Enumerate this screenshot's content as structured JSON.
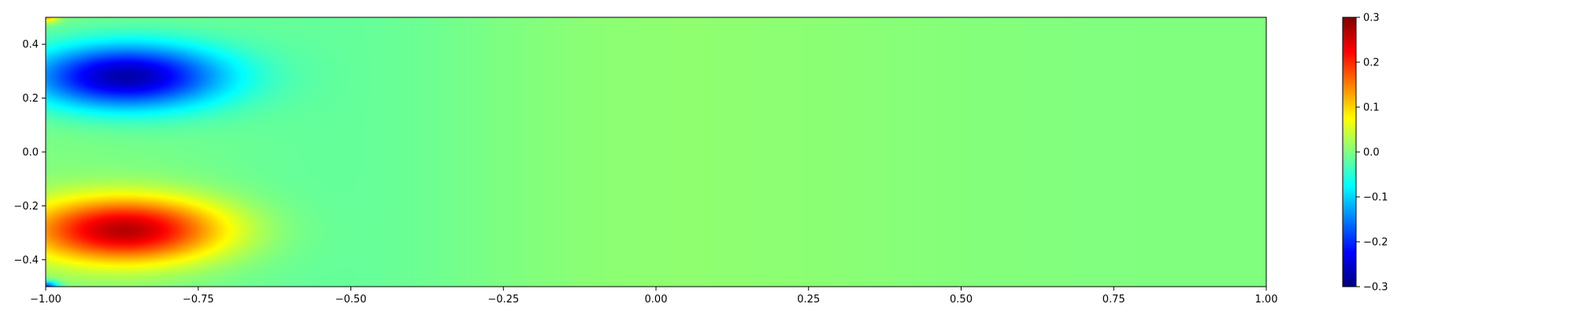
{
  "chart_data": {
    "type": "heatmap",
    "title": "",
    "xlabel": "",
    "ylabel": "",
    "xlim": [
      -1.0,
      1.0
    ],
    "ylim": [
      -0.5,
      0.5
    ],
    "x_ticks": [
      "−1.00",
      "−0.75",
      "−0.50",
      "−0.25",
      "0.00",
      "0.25",
      "0.50",
      "0.75",
      "1.00"
    ],
    "x_tick_values": [
      -1.0,
      -0.75,
      -0.5,
      -0.25,
      0.0,
      0.25,
      0.5,
      0.75,
      1.0
    ],
    "y_ticks": [
      "−0.4",
      "−0.2",
      "0.0",
      "0.2",
      "0.4"
    ],
    "y_tick_values": [
      -0.4,
      -0.2,
      0.0,
      0.2,
      0.4
    ],
    "colormap": "jet",
    "colorbar": {
      "range": [
        -0.3,
        0.3
      ],
      "ticks": [
        "−0.3",
        "−0.2",
        "−0.1",
        "0.0",
        "0.1",
        "0.2",
        "0.3"
      ],
      "tick_values": [
        -0.3,
        -0.2,
        -0.1,
        0.0,
        0.1,
        0.2,
        0.3
      ]
    },
    "features": [
      {
        "kind": "vortex",
        "x": -0.87,
        "y": 0.28,
        "value": -0.27,
        "sx": 0.16,
        "sy": 0.12
      },
      {
        "kind": "vortex",
        "x": -0.87,
        "y": -0.29,
        "value": 0.27,
        "sx": 0.16,
        "sy": 0.12
      },
      {
        "kind": "corner",
        "x": -1.0,
        "y": 0.5,
        "value": 0.12
      },
      {
        "kind": "corner",
        "x": -1.0,
        "y": -0.5,
        "value": -0.2
      }
    ],
    "grid": false,
    "legend": "none"
  }
}
